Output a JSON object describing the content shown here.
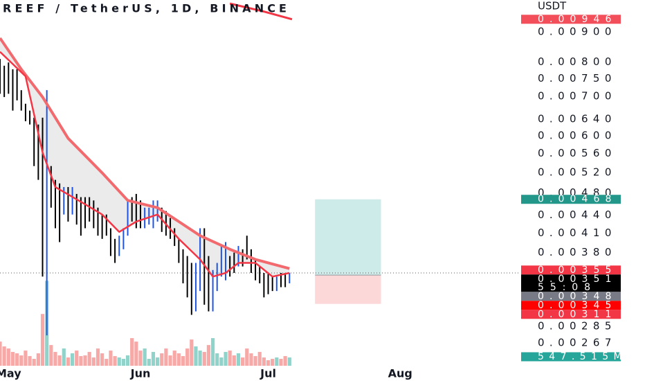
{
  "chart_data": {
    "type": "ohlc",
    "title": "REEF / TetherUS, 1D, BINANCE",
    "currency": "USDT",
    "log_scale": true,
    "xlim": [
      0,
      121.6
    ],
    "ylim": [
      0.00255,
      0.0102
    ],
    "xticks": [
      {
        "value": 2,
        "label": "May"
      },
      {
        "value": 33,
        "label": "Jun"
      },
      {
        "value": 63,
        "label": "Jul"
      },
      {
        "value": 94,
        "label": "Aug"
      }
    ],
    "yticks": [
      {
        "value": 0.009,
        "label": "0.00900"
      },
      {
        "value": 0.008,
        "label": "0.00800"
      },
      {
        "value": 0.0075,
        "label": "0.00750"
      },
      {
        "value": 0.007,
        "label": "0.00700"
      },
      {
        "value": 0.0064,
        "label": "0.00640"
      },
      {
        "value": 0.006,
        "label": "0.00600"
      },
      {
        "value": 0.0056,
        "label": "0.00560"
      },
      {
        "value": 0.0052,
        "label": "0.00520"
      },
      {
        "value": 0.0048,
        "label": "0.00480"
      },
      {
        "value": 0.0044,
        "label": "0.00440"
      },
      {
        "value": 0.0041,
        "label": "0.00410"
      },
      {
        "value": 0.0038,
        "label": "0.00380"
      },
      0.00285,
      0.00267
    ],
    "highs": [
      0.0081,
      0.00789,
      0.00799,
      0.00778,
      0.00778,
      0.00717,
      0.0068,
      0.00662,
      0.00644,
      0.00627,
      0.00644,
      0.00717,
      0.00533,
      0.00505,
      0.00498,
      0.00491,
      0.00491,
      0.00491,
      0.00478,
      0.00472,
      0.00472,
      0.00472,
      0.00466,
      0.00453,
      0.00441,
      0.00441,
      0.00418,
      0.00401,
      0.00406,
      0.00418,
      0.00466,
      0.00472,
      0.00478,
      0.00466,
      0.00453,
      0.00453,
      0.00466,
      0.00466,
      0.00453,
      0.00447,
      0.00435,
      0.00418,
      0.00401,
      0.00385,
      0.00375,
      0.00365,
      0.00365,
      0.00418,
      0.00418,
      0.00375,
      0.00355,
      0.00365,
      0.0039,
      0.00396,
      0.00375,
      0.0038,
      0.0039,
      0.00385,
      0.00406,
      0.00385,
      0.0037,
      0.0036,
      0.00351,
      0.00351,
      0.00346,
      0.00346,
      0.00351,
      0.00351,
      0.00351
    ],
    "lows": [
      0.00707,
      0.00698,
      0.00707,
      0.00662,
      0.00689,
      0.00662,
      0.00635,
      0.00627,
      0.00533,
      0.00505,
      0.00346,
      0.00275,
      0.00453,
      0.00418,
      0.00396,
      0.00441,
      0.00429,
      0.00441,
      0.00424,
      0.00406,
      0.00418,
      0.00429,
      0.00418,
      0.00406,
      0.00401,
      0.00406,
      0.00375,
      0.00365,
      0.00375,
      0.00385,
      0.00406,
      0.00429,
      0.00418,
      0.00418,
      0.00418,
      0.00424,
      0.00418,
      0.00429,
      0.00412,
      0.00406,
      0.00401,
      0.0039,
      0.00365,
      0.00337,
      0.00319,
      0.00298,
      0.00302,
      0.00327,
      0.0031,
      0.00302,
      0.00302,
      0.00327,
      0.00346,
      0.00341,
      0.00346,
      0.00351,
      0.0036,
      0.0036,
      0.0037,
      0.00351,
      0.00341,
      0.00337,
      0.00319,
      0.00323,
      0.00327,
      0.00327,
      0.00332,
      0.00332,
      0.00337
    ],
    "bar_colors": [
      "#000000",
      "#000000",
      "#000000",
      "#000000",
      "#000000",
      "#000000",
      "#000000",
      "#000000",
      "#000000",
      "#000000",
      "#000000",
      "#1e53e5",
      "#000000",
      "#000000",
      "#000000",
      "#1e53e5",
      "#000000",
      "#1e53e5",
      "#000000",
      "#000000",
      "#000000",
      "#000000",
      "#000000",
      "#000000",
      "#000000",
      "#000000",
      "#000000",
      "#000000",
      "#1e53e5",
      "#1e53e5",
      "#1e53e5",
      "#000000",
      "#000000",
      "#000000",
      "#1e53e5",
      "#1e53e5",
      "#1e53e5",
      "#1e53e5",
      "#000000",
      "#000000",
      "#000000",
      "#000000",
      "#000000",
      "#000000",
      "#000000",
      "#000000",
      "#1e53e5",
      "#1e53e5",
      "#000000",
      "#000000",
      "#1e53e5",
      "#1e53e5",
      "#1e53e5",
      "#1e53e5",
      "#000000",
      "#000000",
      "#1e53e5",
      "#000000",
      "#000000",
      "#000000",
      "#000000",
      "#000000",
      "#000000",
      "#000000",
      "#000000",
      "#1e53e5",
      "#000000",
      "#000000",
      "#1e53e5"
    ],
    "volume": {
      "vlim": [
        0,
        9600
      ],
      "up_color": "#8fd3ca",
      "down_color": "#f7a9a7",
      "values": [
        1470,
        1176,
        1050,
        840,
        756,
        630,
        924,
        588,
        420,
        756,
        3150,
        5166,
        1260,
        840,
        630,
        1050,
        504,
        756,
        924,
        588,
        630,
        840,
        504,
        1050,
        756,
        420,
        924,
        588,
        504,
        420,
        630,
        1680,
        1470,
        924,
        1050,
        420,
        840,
        504,
        756,
        1050,
        630,
        924,
        756,
        588,
        1050,
        1596,
        1176,
        924,
        840,
        1260,
        1680,
        756,
        504,
        840,
        924,
        630,
        756,
        504,
        1050,
        756,
        588,
        840,
        504,
        336,
        420,
        504,
        420,
        588,
        504
      ],
      "tag": {
        "value": 547.515,
        "label": "547.515M",
        "color": "#26a69a"
      }
    },
    "band_fill": "#ebebeb",
    "overlays": [
      {
        "color": "#f26a6e",
        "width": 4,
        "x": [
          0,
          5,
          10,
          16,
          24,
          30,
          37,
          42,
          47,
          54,
          60,
          68
        ],
        "values": [
          0.00879,
          0.00778,
          0.00698,
          0.00594,
          0.00519,
          0.00466,
          0.00453,
          0.00429,
          0.00406,
          0.00385,
          0.0037,
          0.00357
        ]
      },
      {
        "color": "#f23645",
        "width": 2.5,
        "x": [
          0,
          6,
          10,
          13,
          20,
          24,
          28,
          32,
          37,
          42,
          47,
          50,
          53,
          56,
          60,
          64,
          68
        ],
        "values": [
          0.00833,
          0.00757,
          0.00562,
          0.00491,
          0.00459,
          0.00441,
          0.00412,
          0.00429,
          0.00441,
          0.00401,
          0.0037,
          0.00346,
          0.00351,
          0.00365,
          0.00365,
          0.00346,
          0.00351
        ]
      },
      {
        "color": "#f23645",
        "width": 3,
        "x": [
          54,
          62,
          68.6
        ],
        "values": [
          0.01006,
          0.00975,
          0.00946
        ]
      }
    ],
    "position": {
      "x": [
        74,
        89.5
      ],
      "target": 0.00468,
      "entry": 0.00348,
      "stop": 0.00311,
      "profit_color": "#cdebe8",
      "loss_color": "#fcd8d8"
    },
    "price_line": true,
    "price_tags": [
      {
        "value": 0.00946,
        "color": "#f24f5b"
      },
      {
        "value": 0.00468,
        "color": "#22978a"
      },
      {
        "value": 0.00355,
        "color": "#f23645"
      },
      {
        "value": 0.00351,
        "color": "#000000",
        "countdown": "55:08"
      },
      {
        "value": 0.00348,
        "color": "#787b86"
      },
      {
        "value": 0.00345,
        "color": "#ff0000"
      },
      {
        "value": 0.00311,
        "color": "#f23645"
      }
    ]
  }
}
